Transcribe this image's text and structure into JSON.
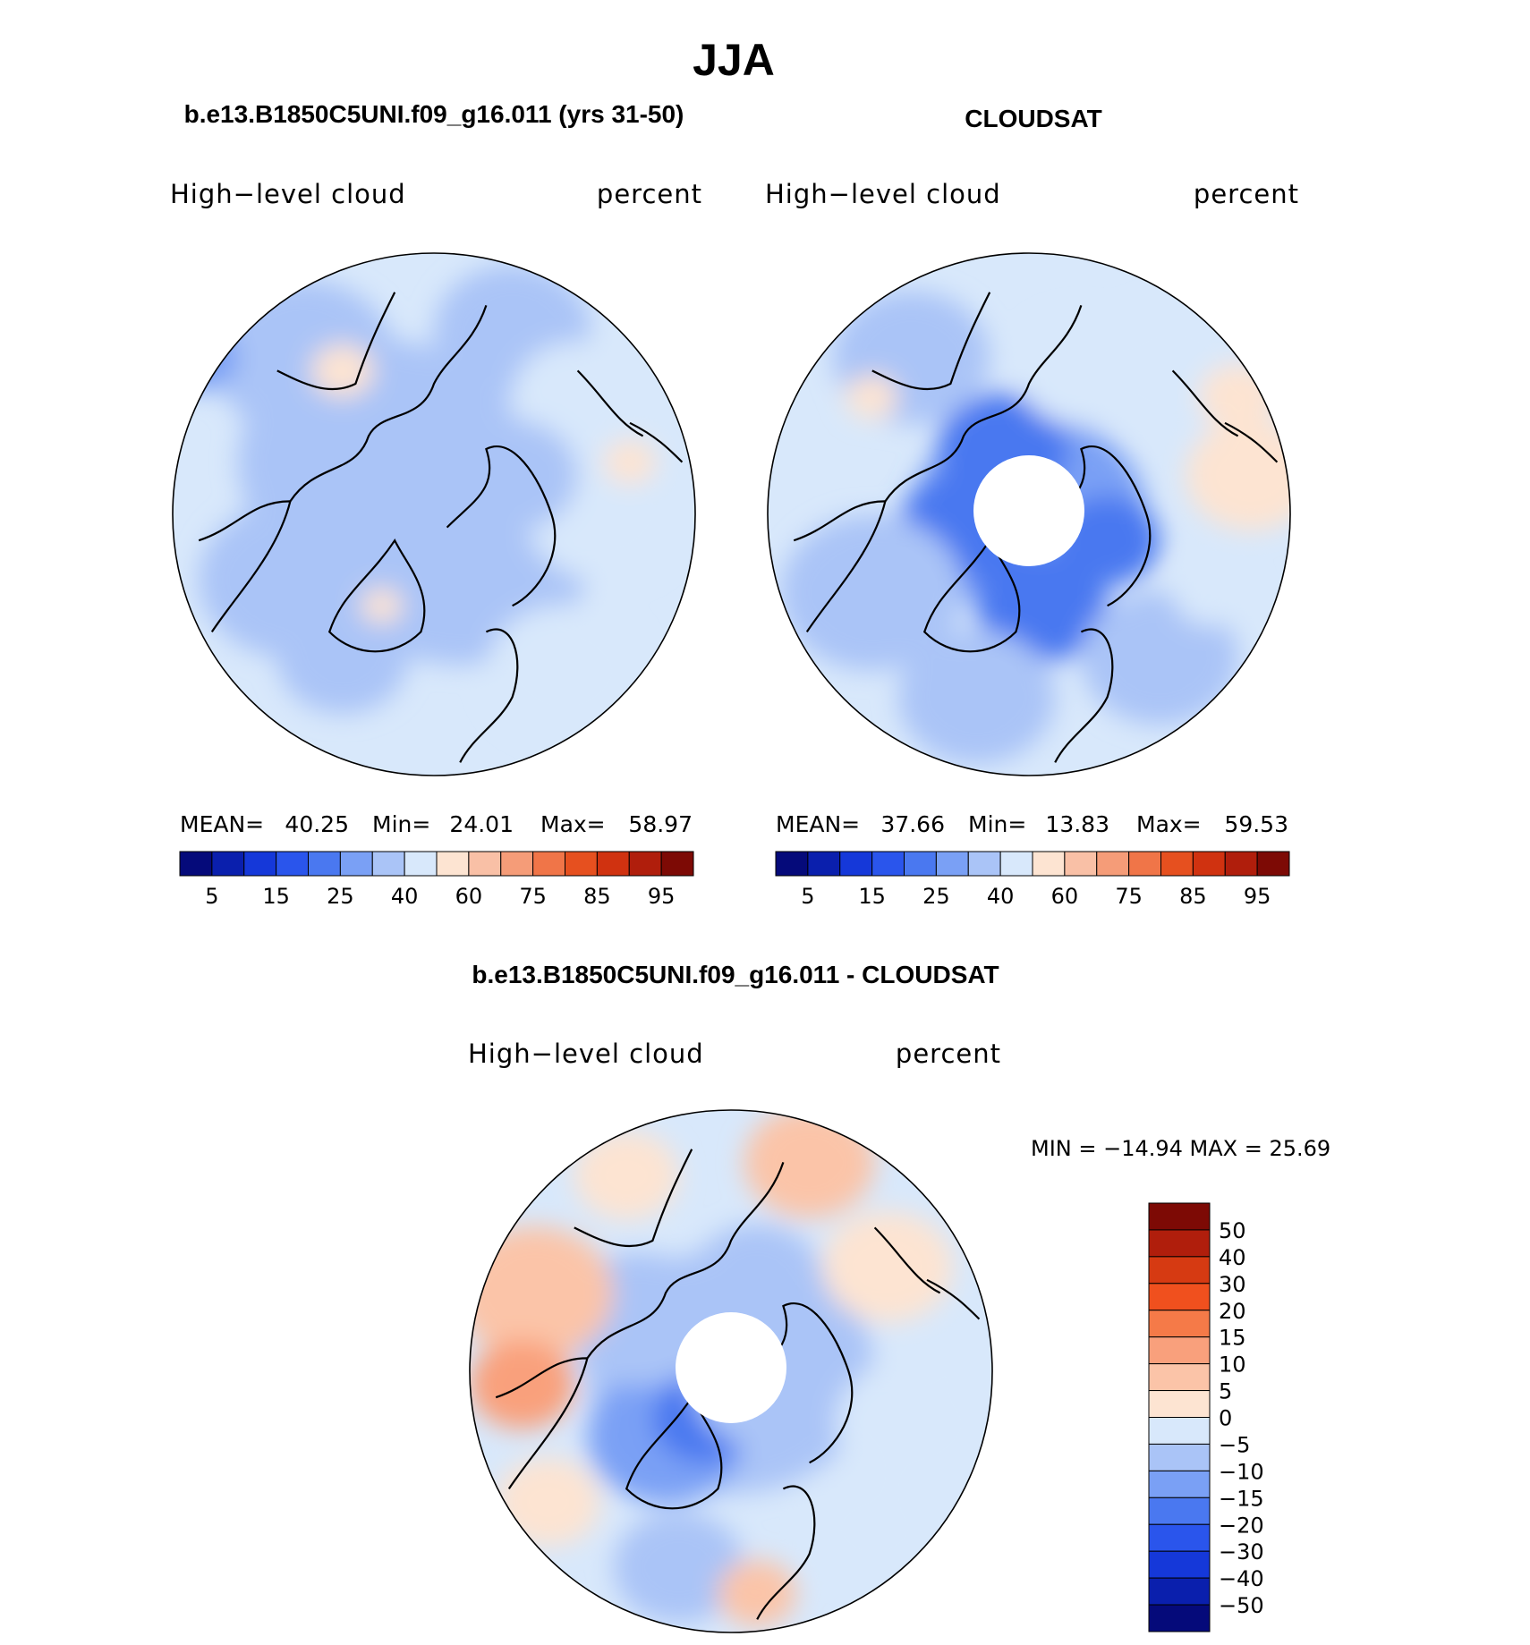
{
  "page_title": "JJA",
  "chart_data": [
    {
      "type": "heatmap",
      "projection": "north-polar-stereographic",
      "panel_title": "b.e13.B1850C5UNI.f09_g16.011 (yrs 31-50)",
      "variable_label": "High−level cloud",
      "units_label": "percent",
      "stats": {
        "mean_label": "MEAN=",
        "mean": "40.25",
        "min_label": "Min=",
        "min": "24.01",
        "max_label": "Max=",
        "max": "58.97"
      },
      "colorbar": {
        "orientation": "horizontal",
        "levels": [
          5,
          10,
          15,
          20,
          25,
          30,
          40,
          50,
          60,
          70,
          75,
          80,
          85,
          90,
          95
        ],
        "tick_labels": [
          "5",
          "15",
          "25",
          "40",
          "60",
          "75",
          "85",
          "95"
        ],
        "colors": [
          "#050a7a",
          "#0a1fad",
          "#1538d9",
          "#2a55ec",
          "#4a78f0",
          "#7aa0f5",
          "#aac4f7",
          "#d8e8fb",
          "#fde4d2",
          "#f9c0a6",
          "#f59c78",
          "#f07548",
          "#e6501f",
          "#d03210",
          "#b01e0c",
          "#7d0a05"
        ]
      }
    },
    {
      "type": "heatmap",
      "projection": "north-polar-stereographic",
      "panel_title": "CLOUDSAT",
      "variable_label": "High−level cloud",
      "units_label": "percent",
      "stats": {
        "mean_label": "MEAN=",
        "mean": "37.66",
        "min_label": "Min=",
        "min": "13.83",
        "max_label": "Max=",
        "max": "59.53"
      },
      "missing_data_region": "north-pole",
      "colorbar": {
        "orientation": "horizontal",
        "levels": [
          5,
          10,
          15,
          20,
          25,
          30,
          40,
          50,
          60,
          70,
          75,
          80,
          85,
          90,
          95
        ],
        "tick_labels": [
          "5",
          "15",
          "25",
          "40",
          "60",
          "75",
          "85",
          "95"
        ],
        "colors": [
          "#050a7a",
          "#0a1fad",
          "#1538d9",
          "#2a55ec",
          "#4a78f0",
          "#7aa0f5",
          "#aac4f7",
          "#d8e8fb",
          "#fde4d2",
          "#f9c0a6",
          "#f59c78",
          "#f07548",
          "#e6501f",
          "#d03210",
          "#b01e0c",
          "#7d0a05"
        ]
      }
    },
    {
      "type": "heatmap",
      "projection": "north-polar-stereographic",
      "panel_title": "b.e13.B1850C5UNI.f09_g16.011 - CLOUDSAT",
      "variable_label": "High−level cloud",
      "units_label": "percent",
      "stats_text": "MIN = −14.94 MAX =   25.69",
      "missing_data_region": "north-pole",
      "colorbar": {
        "orientation": "vertical",
        "tick_labels": [
          "50",
          "40",
          "30",
          "20",
          "15",
          "10",
          "5",
          "0",
          "−5",
          "−10",
          "−15",
          "−20",
          "−30",
          "−40",
          "−50"
        ],
        "colors": [
          "#7d0a05",
          "#b01e0c",
          "#d63a12",
          "#f0501e",
          "#f57a48",
          "#f9a07c",
          "#fbc4a8",
          "#fde4d2",
          "#d8e8fb",
          "#aac4f7",
          "#7aa0f5",
          "#4a78f0",
          "#2a55ec",
          "#1538d9",
          "#0a1fad",
          "#050a7a"
        ]
      }
    }
  ]
}
